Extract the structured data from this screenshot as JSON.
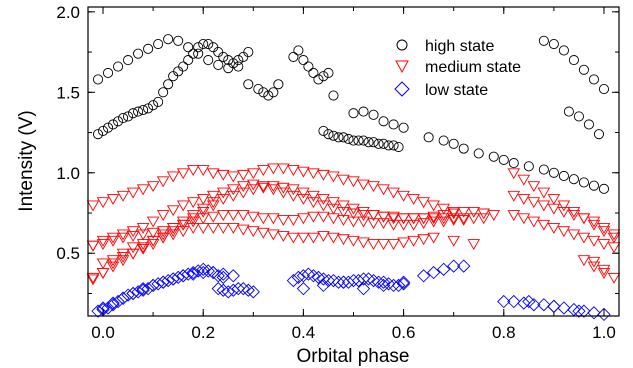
{
  "chart_data": {
    "type": "scatter",
    "xlabel": "Orbital phase",
    "ylabel": "Intensity (V)",
    "xlim": [
      -0.03,
      1.03
    ],
    "ylim": [
      0.11,
      2.03
    ],
    "xticks": [
      "0.0",
      "0.2",
      "0.4",
      "0.6",
      "0.8",
      "1.0"
    ],
    "yticks": [
      "0.5",
      "1.0",
      "1.5",
      "2.0"
    ],
    "legend_position": "top-right",
    "series": [
      {
        "name": "high state",
        "marker": "circle-open",
        "color": "#000000",
        "x": [
          -0.01,
          0.0,
          0.01,
          0.02,
          0.03,
          0.04,
          0.05,
          0.06,
          0.07,
          0.08,
          0.09,
          0.1,
          0.11,
          0.12,
          0.13,
          0.14,
          0.15,
          0.16,
          0.17,
          0.18,
          0.19,
          0.2,
          0.21,
          0.22,
          0.23,
          0.24,
          0.25,
          0.26,
          0.27,
          0.28,
          0.29,
          -0.01,
          0.01,
          0.03,
          0.05,
          0.07,
          0.09,
          0.11,
          0.13,
          0.15,
          0.17,
          0.19,
          0.21,
          0.23,
          0.25,
          0.27,
          0.29,
          0.31,
          0.32,
          0.33,
          0.34,
          0.35,
          0.38,
          0.39,
          0.4,
          0.41,
          0.42,
          0.43,
          0.44,
          0.45,
          0.46,
          0.44,
          0.45,
          0.46,
          0.47,
          0.48,
          0.49,
          0.5,
          0.51,
          0.52,
          0.53,
          0.54,
          0.55,
          0.56,
          0.57,
          0.58,
          0.59,
          0.5,
          0.52,
          0.54,
          0.56,
          0.58,
          0.6,
          0.65,
          0.68,
          0.7,
          0.72,
          0.75,
          0.78,
          0.8,
          0.82,
          0.85,
          0.88,
          0.9,
          0.92,
          0.94,
          0.96,
          0.98,
          1.0,
          0.88,
          0.9,
          0.92,
          0.94,
          0.96,
          0.98,
          1.0,
          0.93,
          0.95,
          0.97,
          0.99
        ],
        "y": [
          1.24,
          1.26,
          1.28,
          1.3,
          1.32,
          1.34,
          1.35,
          1.37,
          1.38,
          1.39,
          1.4,
          1.42,
          1.44,
          1.5,
          1.55,
          1.6,
          1.63,
          1.66,
          1.7,
          1.74,
          1.78,
          1.8,
          1.8,
          1.78,
          1.75,
          1.72,
          1.7,
          1.68,
          1.7,
          1.72,
          1.75,
          1.58,
          1.62,
          1.66,
          1.7,
          1.74,
          1.77,
          1.8,
          1.83,
          1.82,
          1.78,
          1.74,
          1.7,
          1.67,
          1.65,
          1.66,
          1.55,
          1.52,
          1.5,
          1.48,
          1.5,
          1.55,
          1.72,
          1.76,
          1.7,
          1.66,
          1.62,
          1.58,
          1.6,
          1.62,
          1.48,
          1.26,
          1.24,
          1.23,
          1.22,
          1.22,
          1.21,
          1.2,
          1.2,
          1.2,
          1.19,
          1.19,
          1.18,
          1.18,
          1.17,
          1.17,
          1.16,
          1.37,
          1.38,
          1.36,
          1.32,
          1.3,
          1.28,
          1.22,
          1.2,
          1.18,
          1.15,
          1.12,
          1.1,
          1.08,
          1.06,
          1.04,
          1.02,
          1.0,
          0.98,
          0.96,
          0.94,
          0.92,
          0.9,
          1.82,
          1.8,
          1.76,
          1.7,
          1.64,
          1.58,
          1.52,
          1.38,
          1.35,
          1.3,
          1.24
        ]
      },
      {
        "name": "medium state",
        "marker": "triangle-down-open",
        "color": "#ff0000",
        "x": [
          -0.02,
          0.0,
          0.02,
          0.04,
          0.06,
          0.08,
          0.1,
          0.12,
          0.14,
          0.16,
          0.18,
          0.2,
          0.22,
          0.24,
          0.26,
          0.28,
          0.3,
          0.32,
          0.34,
          0.36,
          0.38,
          0.4,
          0.42,
          0.44,
          0.46,
          0.48,
          0.5,
          0.52,
          0.54,
          0.56,
          0.58,
          0.6,
          0.62,
          0.64,
          0.66,
          0.68,
          0.7,
          -0.02,
          0.0,
          0.02,
          0.04,
          0.06,
          0.08,
          0.1,
          0.12,
          0.14,
          0.16,
          0.18,
          0.2,
          0.22,
          0.24,
          0.26,
          0.28,
          0.3,
          0.32,
          0.34,
          0.36,
          0.38,
          0.4,
          0.42,
          0.44,
          0.46,
          0.48,
          0.5,
          0.52,
          0.54,
          0.56,
          0.58,
          0.6,
          0.62,
          0.64,
          0.66,
          0.68,
          0.7,
          0.72,
          0.74,
          0.76,
          0.78,
          0.82,
          0.84,
          0.86,
          0.88,
          0.9,
          0.92,
          0.94,
          0.96,
          0.98,
          1.0,
          1.02,
          -0.02,
          0.0,
          0.02,
          0.04,
          0.06,
          0.08,
          0.1,
          0.12,
          0.14,
          0.16,
          0.18,
          0.2,
          0.22,
          0.24,
          0.26,
          0.28,
          0.3,
          0.32,
          0.34,
          0.36,
          0.38,
          0.4,
          0.42,
          0.44,
          0.46,
          0.48,
          0.5,
          0.52,
          0.54,
          0.56,
          0.58,
          0.6,
          0.62,
          0.64,
          0.66,
          0.68,
          0.7,
          0.72,
          0.74,
          0.76,
          0.82,
          0.84,
          0.86,
          0.88,
          0.9,
          0.92,
          0.94,
          0.96,
          0.98,
          1.0,
          1.02,
          -0.02,
          0.0,
          0.02,
          0.04,
          0.06,
          0.08,
          0.1,
          0.12,
          0.14,
          0.16,
          0.18,
          0.2,
          0.22,
          0.24,
          0.26,
          0.28,
          0.3,
          0.32,
          0.34,
          0.36,
          0.38,
          0.4,
          0.42,
          0.44,
          0.46,
          0.48,
          0.5,
          0.52,
          0.54,
          0.56,
          0.58,
          0.6,
          0.62,
          0.64,
          0.66,
          0.7,
          0.74,
          0.98,
          1.0,
          1.02,
          0.0,
          0.02,
          0.04,
          0.06,
          0.08,
          0.1,
          0.12,
          0.14,
          0.16,
          0.18,
          0.2,
          0.22,
          0.24,
          0.26,
          0.28,
          0.3,
          0.32,
          0.34,
          0.36,
          0.38,
          0.4,
          0.42,
          0.44,
          0.46,
          0.48,
          0.5,
          0.52,
          0.54,
          0.56,
          0.58,
          0.6,
          0.62,
          0.64,
          0.66,
          0.68,
          0.7,
          0.72,
          -0.02,
          0.0,
          0.02,
          0.04,
          0.06,
          0.08,
          0.1,
          0.12,
          0.14,
          0.16,
          0.18,
          0.2,
          0.22,
          0.82,
          0.84,
          0.86,
          0.88,
          0.9,
          0.92,
          0.94,
          0.96,
          0.98,
          1.0,
          1.02,
          0.96,
          0.98,
          1.0
        ],
        "y": [
          0.8,
          0.82,
          0.84,
          0.86,
          0.88,
          0.9,
          0.92,
          0.95,
          0.98,
          1.0,
          1.02,
          1.02,
          1.0,
          0.99,
          0.98,
          0.99,
          1.0,
          1.02,
          1.03,
          1.03,
          1.02,
          1.01,
          1.0,
          0.99,
          0.98,
          0.96,
          0.95,
          0.93,
          0.92,
          0.9,
          0.88,
          0.86,
          0.84,
          0.82,
          0.8,
          0.78,
          0.76,
          0.55,
          0.58,
          0.6,
          0.62,
          0.64,
          0.66,
          0.7,
          0.74,
          0.77,
          0.8,
          0.82,
          0.84,
          0.86,
          0.88,
          0.9,
          0.92,
          0.93,
          0.92,
          0.9,
          0.88,
          0.86,
          0.84,
          0.82,
          0.8,
          0.78,
          0.76,
          0.75,
          0.74,
          0.74,
          0.73,
          0.73,
          0.72,
          0.72,
          0.72,
          0.73,
          0.74,
          0.75,
          0.76,
          0.76,
          0.75,
          0.74,
          1.0,
          0.96,
          0.92,
          0.88,
          0.84,
          0.8,
          0.76,
          0.72,
          0.68,
          0.64,
          0.6,
          0.55,
          0.56,
          0.58,
          0.6,
          0.61,
          0.62,
          0.63,
          0.64,
          0.66,
          0.68,
          0.7,
          0.72,
          0.73,
          0.74,
          0.74,
          0.74,
          0.73,
          0.72,
          0.72,
          0.71,
          0.71,
          0.72,
          0.73,
          0.73,
          0.72,
          0.71,
          0.7,
          0.7,
          0.69,
          0.69,
          0.68,
          0.68,
          0.68,
          0.69,
          0.7,
          0.7,
          0.71,
          0.71,
          0.72,
          0.72,
          0.86,
          0.84,
          0.82,
          0.8,
          0.78,
          0.76,
          0.74,
          0.72,
          0.7,
          0.66,
          0.62,
          0.34,
          0.38,
          0.44,
          0.5,
          0.54,
          0.56,
          0.58,
          0.6,
          0.62,
          0.64,
          0.66,
          0.66,
          0.66,
          0.66,
          0.66,
          0.65,
          0.64,
          0.63,
          0.62,
          0.61,
          0.6,
          0.6,
          0.6,
          0.61,
          0.6,
          0.59,
          0.58,
          0.57,
          0.56,
          0.56,
          0.56,
          0.57,
          0.58,
          0.59,
          0.6,
          0.58,
          0.56,
          0.45,
          0.4,
          0.35,
          0.44,
          0.46,
          0.48,
          0.5,
          0.53,
          0.56,
          0.6,
          0.64,
          0.68,
          0.72,
          0.76,
          0.8,
          0.84,
          0.86,
          0.88,
          0.9,
          0.91,
          0.92,
          0.91,
          0.9,
          0.88,
          0.86,
          0.84,
          0.82,
          0.8,
          0.78,
          0.76,
          0.74,
          0.73,
          0.72,
          0.72,
          0.72,
          0.72,
          0.72,
          0.72,
          0.72,
          0.72,
          0.35,
          0.38,
          0.42,
          0.46,
          0.5,
          0.54,
          0.58,
          0.62,
          0.66,
          0.7,
          0.74,
          0.78,
          0.82,
          0.74,
          0.72,
          0.7,
          0.68,
          0.66,
          0.64,
          0.62,
          0.6,
          0.58,
          0.56,
          0.54,
          0.46,
          0.42,
          0.38
        ]
      },
      {
        "name": "low state",
        "marker": "diamond-open",
        "color": "#0000ff",
        "x": [
          -0.01,
          0.0,
          0.01,
          0.02,
          0.03,
          0.04,
          0.05,
          0.06,
          0.07,
          0.08,
          0.09,
          0.1,
          0.11,
          0.12,
          0.13,
          0.14,
          0.15,
          0.16,
          0.17,
          0.18,
          0.19,
          0.2,
          0.21,
          0.22,
          0.23,
          0.24,
          0.0,
          0.02,
          0.04,
          0.06,
          0.08,
          0.1,
          0.12,
          0.14,
          0.16,
          0.18,
          0.2,
          0.22,
          0.24,
          0.26,
          0.23,
          0.24,
          0.25,
          0.26,
          0.27,
          0.28,
          0.29,
          0.3,
          0.38,
          0.39,
          0.4,
          0.41,
          0.42,
          0.43,
          0.44,
          0.45,
          0.46,
          0.47,
          0.48,
          0.49,
          0.5,
          0.51,
          0.52,
          0.53,
          0.54,
          0.55,
          0.56,
          0.57,
          0.58,
          0.59,
          0.6,
          0.4,
          0.44,
          0.48,
          0.52,
          0.56,
          0.6,
          0.64,
          0.66,
          0.68,
          0.7,
          0.72,
          0.8,
          0.82,
          0.84,
          0.86,
          0.88,
          0.9,
          0.92,
          0.94,
          0.96,
          0.98,
          1.0,
          0.85,
          0.9,
          0.95
        ],
        "y": [
          0.14,
          0.15,
          0.16,
          0.18,
          0.2,
          0.22,
          0.24,
          0.25,
          0.26,
          0.27,
          0.28,
          0.3,
          0.31,
          0.32,
          0.33,
          0.34,
          0.35,
          0.36,
          0.37,
          0.38,
          0.39,
          0.4,
          0.39,
          0.38,
          0.36,
          0.35,
          0.16,
          0.19,
          0.22,
          0.25,
          0.28,
          0.3,
          0.32,
          0.34,
          0.36,
          0.37,
          0.38,
          0.38,
          0.37,
          0.36,
          0.28,
          0.27,
          0.26,
          0.27,
          0.28,
          0.28,
          0.27,
          0.26,
          0.33,
          0.35,
          0.36,
          0.37,
          0.36,
          0.35,
          0.34,
          0.33,
          0.33,
          0.32,
          0.32,
          0.32,
          0.33,
          0.33,
          0.34,
          0.34,
          0.33,
          0.32,
          0.32,
          0.31,
          0.3,
          0.3,
          0.31,
          0.28,
          0.3,
          0.32,
          0.28,
          0.3,
          0.32,
          0.36,
          0.38,
          0.4,
          0.42,
          0.42,
          0.2,
          0.2,
          0.19,
          0.18,
          0.18,
          0.17,
          0.16,
          0.15,
          0.14,
          0.13,
          0.12,
          0.2,
          0.17,
          0.14
        ]
      }
    ]
  }
}
